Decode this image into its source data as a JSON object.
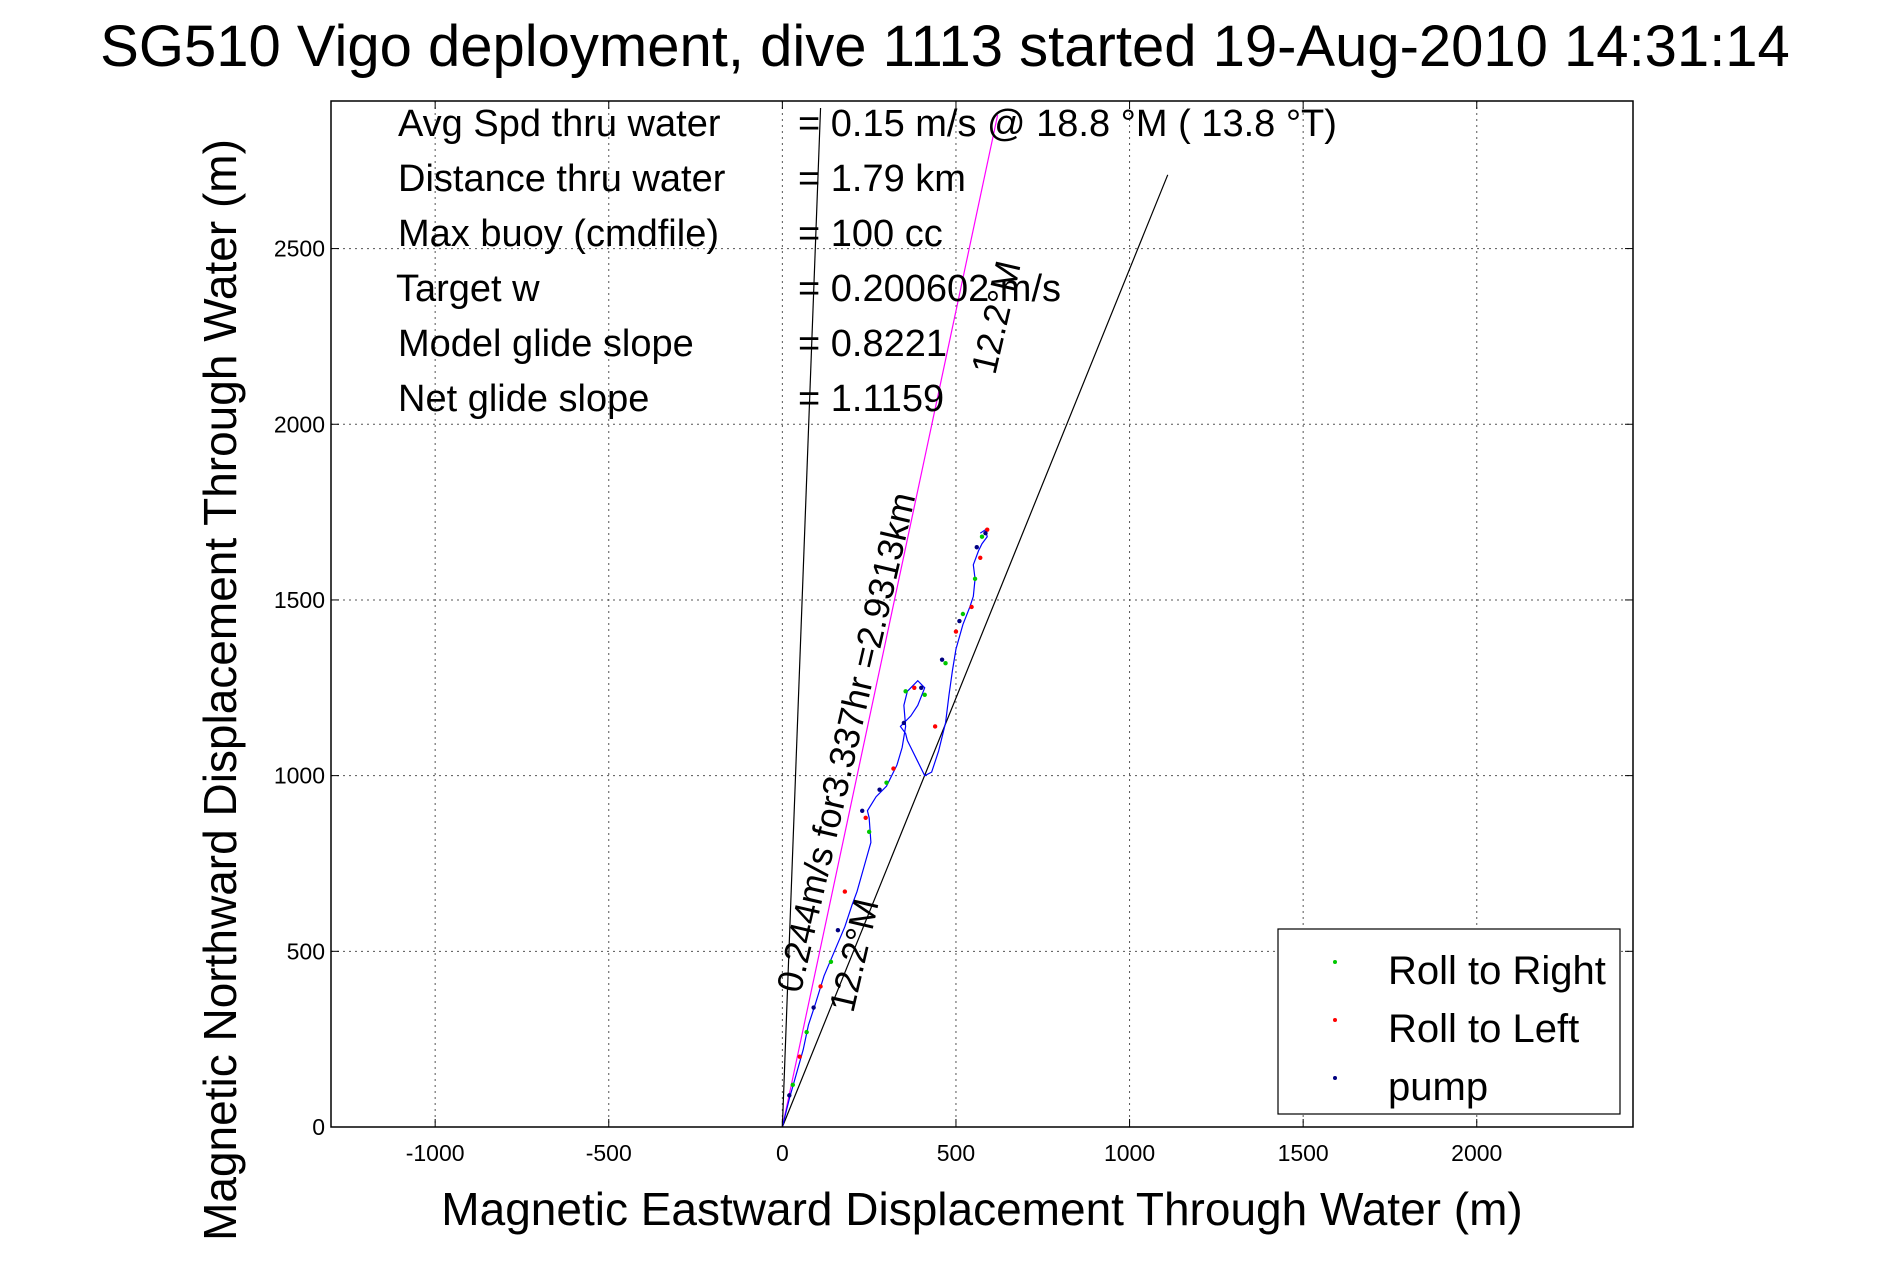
{
  "chart_data": {
    "type": "line",
    "title": "SG510 Vigo deployment, dive 1113 started 19-Aug-2010 14:31:14",
    "xlabel": "Magnetic Eastward Displacement Through Water (m)",
    "ylabel": "Magnetic Northward Displacement Through Water (m)",
    "xlim": [
      -1300,
      2450
    ],
    "ylim": [
      0,
      2920
    ],
    "xticks": [
      -1000,
      -500,
      0,
      500,
      1000,
      1500,
      2000
    ],
    "yticks": [
      0,
      500,
      1000,
      1500,
      2000,
      2500
    ],
    "grid": true,
    "legend_position": "bottom-right",
    "info": [
      {
        "label": "Avg Spd thru water",
        "value": "=  0.15 m/s @  18.8 °M ( 13.8 °T)"
      },
      {
        "label": "Distance thru water",
        "value": "=  1.79 km"
      },
      {
        "label": "Max buoy (cmdfile)",
        "value": "= 100 cc"
      },
      {
        "label": "Target w",
        "value": "= 0.200602 m/s"
      },
      {
        "label": "Model glide slope",
        "value": "= 0.8221"
      },
      {
        "label": "Net glide slope",
        "value": "= 1.1159"
      }
    ],
    "annotations": {
      "bearing_upper": "12.2°M",
      "bearing_lower": "12.2°M",
      "speed_text": "0.244m/s for3.337hr =2.9313km"
    },
    "reference_lines": [
      {
        "name": "left-bound",
        "color": "#000000",
        "x": [
          0,
          110
        ],
        "y": [
          0,
          2900
        ]
      },
      {
        "name": "right-bound",
        "color": "#000000",
        "x": [
          0,
          1110
        ],
        "y": [
          0,
          2710
        ]
      },
      {
        "name": "course",
        "color": "#ff00ff",
        "x": [
          0,
          620
        ],
        "y": [
          0,
          2880
        ]
      }
    ],
    "track": {
      "color": "#0000ff",
      "x": [
        0,
        20,
        40,
        60,
        75,
        95,
        120,
        150,
        180,
        200,
        215,
        235,
        255,
        250,
        245,
        270,
        300,
        330,
        345,
        355,
        350,
        360,
        390,
        410,
        390,
        370,
        340,
        355,
        360,
        370,
        390,
        410,
        430,
        450,
        470,
        480,
        490,
        500,
        520,
        540,
        550,
        555,
        550,
        565,
        575,
        590,
        585,
        570
      ],
      "y": [
        0,
        80,
        150,
        220,
        290,
        350,
        430,
        500,
        570,
        630,
        670,
        740,
        810,
        880,
        900,
        940,
        970,
        1030,
        1080,
        1140,
        1200,
        1240,
        1270,
        1250,
        1200,
        1170,
        1140,
        1120,
        1100,
        1080,
        1040,
        1000,
        1010,
        1070,
        1150,
        1230,
        1300,
        1360,
        1430,
        1480,
        1510,
        1560,
        1600,
        1640,
        1660,
        1680,
        1700,
        1690
      ]
    },
    "series": [
      {
        "name": "Roll to Right",
        "color": "#00c800",
        "x": [
          30,
          70,
          140,
          250,
          300,
          355,
          410,
          470,
          520,
          555,
          575
        ],
        "y": [
          120,
          270,
          470,
          840,
          980,
          1240,
          1230,
          1320,
          1460,
          1560,
          1680
        ]
      },
      {
        "name": "Roll to Left",
        "color": "#ff0000",
        "x": [
          50,
          110,
          180,
          240,
          320,
          380,
          440,
          500,
          545,
          570,
          590
        ],
        "y": [
          200,
          400,
          670,
          880,
          1020,
          1250,
          1140,
          1410,
          1480,
          1620,
          1700
        ]
      },
      {
        "name": "pump",
        "color": "#000080",
        "x": [
          20,
          90,
          160,
          230,
          280,
          350,
          400,
          460,
          510,
          560,
          585
        ],
        "y": [
          90,
          340,
          560,
          900,
          960,
          1150,
          1250,
          1330,
          1440,
          1650,
          1690
        ]
      }
    ]
  }
}
